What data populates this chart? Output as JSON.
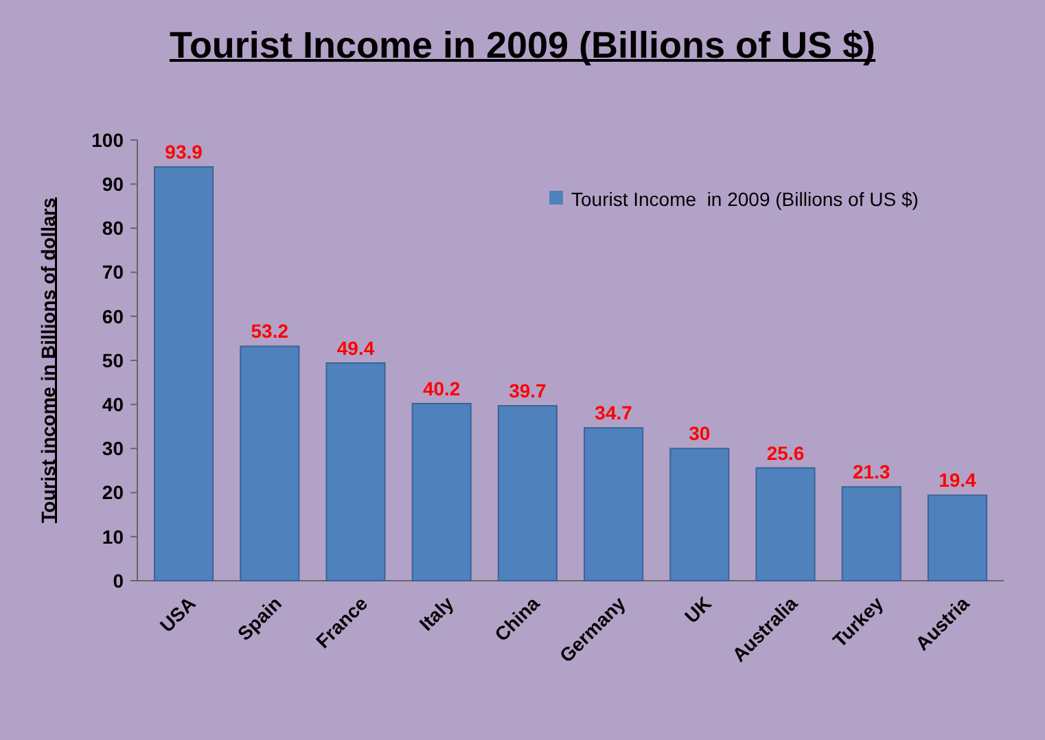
{
  "chart_data": {
    "type": "bar",
    "title": "Tourist Income in 2009 (Billions of US $)",
    "ylabel": "Tourist income in Billions of dollars",
    "categories": [
      "USA",
      "Spain",
      "France",
      "Italy",
      "China",
      "Germany",
      "UK",
      "Australia",
      "Turkey",
      "Austria"
    ],
    "series": [
      {
        "name": "Tourist Income  in 2009 (Billions of US $)",
        "color": "#4f81bd",
        "values": [
          93.9,
          53.2,
          49.4,
          40.2,
          39.7,
          34.7,
          30,
          25.6,
          21.3,
          19.4
        ]
      }
    ],
    "ylim": [
      0,
      100
    ],
    "yticks": [
      0,
      10,
      20,
      30,
      40,
      50,
      60,
      70,
      80,
      90,
      100
    ],
    "data_labels": true,
    "legend": "top right",
    "grid": false
  }
}
